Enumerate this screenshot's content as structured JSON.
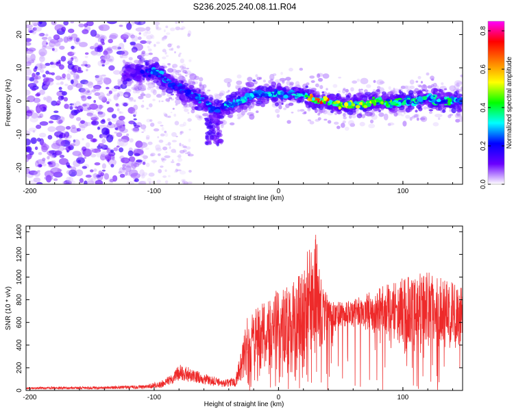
{
  "figure_title": "S236.2025.240.08.11.R04",
  "colors": {
    "trace": "#ee2a2a",
    "axes": "#000000",
    "background": "#ffffff"
  },
  "chart_data": [
    {
      "type": "heatmap",
      "title": "S236.2025.240.08.11.R04",
      "xlabel": "Height of straight line (km)",
      "ylabel": "Frequency (Hz)",
      "xlim": [
        -203,
        148
      ],
      "ylim": [
        -25,
        24
      ],
      "xticks": [
        -200,
        -100,
        0,
        100
      ],
      "yticks": [
        -20,
        -10,
        0,
        10,
        20
      ],
      "colorbar": {
        "label": "Normalized spectral amplitude",
        "range": [
          0,
          0.85
        ],
        "ticks": [
          0,
          0.2,
          0.4,
          0.6,
          0.8
        ],
        "tick_labels": [
          "0.0",
          "0.2",
          "0.4",
          "0.6",
          "0.8"
        ],
        "colormap": [
          "#ffffff",
          "#6a00ff",
          "#0000ff",
          "#00ffff",
          "#00ff00",
          "#ffff00",
          "#ff7f00",
          "#ff0000",
          "#ff00ff"
        ]
      },
      "ridge": {
        "description": "dominant frequency band",
        "x": [
          -125,
          -100,
          -90,
          -80,
          -70,
          -60,
          -50,
          -40,
          -30,
          -20,
          -10,
          0,
          10,
          20,
          30,
          40,
          50,
          60,
          70,
          80,
          90,
          100,
          110,
          120,
          130,
          140,
          148
        ],
        "frequency": [
          8,
          9,
          6,
          4,
          2,
          0,
          -3,
          -1,
          0,
          2,
          2,
          2,
          2,
          2,
          0,
          0,
          -1,
          -1,
          -1,
          0,
          -1,
          0,
          0,
          1,
          0,
          0,
          0
        ],
        "peak_amplitude": [
          0.15,
          0.3,
          0.3,
          0.25,
          0.3,
          0.3,
          0.3,
          0.35,
          0.35,
          0.35,
          0.35,
          0.35,
          0.35,
          0.4,
          0.8,
          0.8,
          0.6,
          0.55,
          0.55,
          0.5,
          0.5,
          0.4,
          0.4,
          0.4,
          0.4,
          0.45,
          0.4
        ]
      }
    },
    {
      "type": "line",
      "xlabel": "Height of straight line (km)",
      "ylabel": "SNR (10 * v/v)",
      "xlim": [
        -203,
        148
      ],
      "ylim": [
        0,
        1450
      ],
      "xticks": [
        -200,
        -100,
        0,
        100
      ],
      "yticks": [
        0,
        200,
        400,
        600,
        800,
        1000,
        1200,
        1400
      ],
      "series": [
        {
          "name": "SNR",
          "envelope_x": [
            -203,
            -150,
            -110,
            -95,
            -85,
            -80,
            -70,
            -60,
            -45,
            -35,
            -30,
            -25,
            -20,
            -10,
            0,
            10,
            20,
            25,
            30,
            35,
            40,
            50,
            60,
            80,
            100,
            120,
            140,
            148
          ],
          "envelope_low": [
            10,
            10,
            15,
            20,
            60,
            90,
            70,
            50,
            30,
            30,
            80,
            150,
            150,
            200,
            250,
            250,
            300,
            320,
            400,
            350,
            550,
            560,
            560,
            500,
            420,
            380,
            380,
            400
          ],
          "envelope_high": [
            30,
            35,
            45,
            80,
            150,
            230,
            200,
            150,
            100,
            120,
            350,
            650,
            700,
            800,
            900,
            950,
            1100,
            1300,
            1400,
            1000,
            800,
            780,
            800,
            900,
            1000,
            1050,
            950,
            900
          ]
        }
      ]
    }
  ]
}
